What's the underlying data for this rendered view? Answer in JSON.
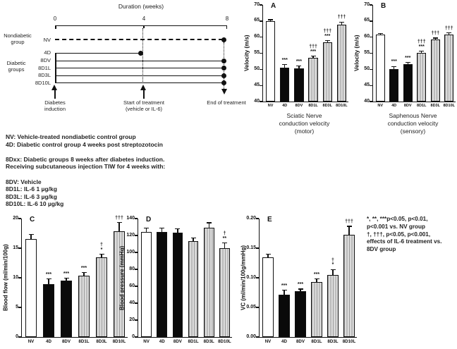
{
  "figure": {
    "timeline": {
      "title": "Duration (weeks)",
      "axis_ticks": [
        "0",
        "4",
        "8"
      ],
      "nondiabetic_label": [
        "Nondiabetic",
        "group"
      ],
      "diabetic_label": [
        "Diabetic",
        "groups"
      ],
      "rows": [
        "NV",
        "4D",
        "8DV",
        "8D1L",
        "8D3L",
        "8D10L"
      ],
      "annotations": {
        "induction": [
          "Diabetes",
          "induction"
        ],
        "start": [
          "Start of treatment",
          "(vehicle or IL-6)"
        ],
        "end": "End of treatment"
      }
    },
    "legend_lines": [
      "NV: Vehicle-treated nondiabetic control group",
      "4D: Diabetic control group 4 weeks post streptozotocin",
      "",
      "8Dxx: Diabetic groups 8 weeks after diabetes induction.",
      "Receiving subcutaneous injection TIW for 4 weeks with:",
      "",
      "8DV: Vehicle",
      "8D1L: IL-6 1 µg/kg",
      "8D3L: IL-6 3 µg/kg",
      "8D10L: IL-6 10 µg/kg"
    ],
    "stats_lines": [
      "*, **, ***p<0.05, p<0.01,",
      "p<0.001 vs. NV group",
      "†, †††, p<0.05, p<0.001,",
      "effects of IL-6 treatment vs.",
      "8DV group"
    ]
  },
  "colors": {
    "bar_white": "#ffffff",
    "bar_black": "#0a0a0a",
    "hatch_light": "#dcdcdc",
    "hatch_dark": "#9a9a9a",
    "axis": "#111111"
  },
  "chart_data": [
    {
      "type": "bar",
      "panel": "A",
      "ylabel": "Velocity (m/s)",
      "ymin": 40,
      "ymax": 70,
      "yticks": [
        "70",
        "65",
        "60",
        "55",
        "50",
        "45",
        "40"
      ],
      "categories": [
        "NV",
        "4D",
        "8DV",
        "8D1L",
        "8D3L",
        "8D10L"
      ],
      "values": [
        64.9,
        50.5,
        50.2,
        53.5,
        58.4,
        63.9
      ],
      "errors": [
        0.5,
        1.0,
        0.8,
        0.6,
        0.5,
        0.8
      ],
      "marks": [
        [],
        [
          "***"
        ],
        [
          "***"
        ],
        [
          "†††",
          "***"
        ],
        [
          "†††",
          "***"
        ],
        [
          "†††"
        ]
      ],
      "styles": [
        "white",
        "black",
        "black",
        "hatch",
        "hatch",
        "hatch"
      ],
      "caption": [
        "Sciatic Nerve",
        "conduction velocity",
        "(motor)"
      ]
    },
    {
      "type": "bar",
      "panel": "B",
      "ylabel": "Velocity (m/s)",
      "ymin": 40,
      "ymax": 70,
      "yticks": [
        "70",
        "65",
        "60",
        "55",
        "50",
        "45",
        "40"
      ],
      "categories": [
        "NV",
        "4D",
        "8DV",
        "8D1L",
        "8D3L",
        "8D10L"
      ],
      "values": [
        60.8,
        50.0,
        51.5,
        55.2,
        59.3,
        60.9
      ],
      "errors": [
        0.4,
        0.9,
        0.6,
        0.5,
        0.4,
        0.4
      ],
      "marks": [
        [],
        [
          "***"
        ],
        [
          "***"
        ],
        [
          "†††",
          "***"
        ],
        [
          "†††"
        ],
        [
          "†††"
        ]
      ],
      "styles": [
        "white",
        "black",
        "black",
        "hatch",
        "hatch",
        "hatch"
      ],
      "caption": [
        "Saphenous Nerve",
        "conduction velocity",
        "(sensory)"
      ]
    },
    {
      "type": "bar",
      "panel": "C",
      "ylabel": "Blood flow (ml/min/100g)",
      "ymin": 0,
      "ymax": 20,
      "yticks": [
        "20",
        "15",
        "10",
        "5",
        "0"
      ],
      "categories": [
        "NV",
        "4D",
        "8DV",
        "8D1L",
        "8D3L",
        "8D10L"
      ],
      "values": [
        16.6,
        8.9,
        9.5,
        10.4,
        13.4,
        17.9
      ],
      "errors": [
        0.7,
        0.9,
        0.4,
        0.5,
        0.6,
        1.4
      ],
      "marks": [
        [],
        [
          "***"
        ],
        [
          "***"
        ],
        [
          "***"
        ],
        [
          "†",
          "*"
        ],
        [
          "†††"
        ]
      ],
      "styles": [
        "white",
        "black",
        "black",
        "hatch",
        "hatch",
        "hatch"
      ]
    },
    {
      "type": "bar",
      "panel": "D",
      "ylabel": "Blood pressure (mmHg)",
      "ymin": 0,
      "ymax": 140,
      "yticks": [
        "140",
        "120",
        "100",
        "80",
        "60",
        "40",
        "20",
        "0"
      ],
      "categories": [
        "NV",
        "4D",
        "8DV",
        "8D1L",
        "8D3L",
        "8D10L"
      ],
      "values": [
        124,
        124,
        123,
        113,
        129,
        105
      ],
      "errors": [
        5,
        5,
        5,
        4,
        6,
        6
      ],
      "marks": [
        [],
        [],
        [],
        [],
        [],
        [
          "†",
          "**"
        ]
      ],
      "styles": [
        "white",
        "black",
        "black",
        "hatch",
        "hatch",
        "hatch"
      ]
    },
    {
      "type": "bar",
      "panel": "E",
      "ylabel": "VC (ml/min/100g/mmHg)",
      "ymin": 0,
      "ymax": 0.2,
      "yticks": [
        "0.20",
        "0.15",
        "0.10",
        "0.05",
        "0.00"
      ],
      "categories": [
        "NV",
        "4D",
        "8DV",
        "8D1L",
        "8D3L",
        "8D10L"
      ],
      "values": [
        0.135,
        0.072,
        0.077,
        0.093,
        0.105,
        0.173
      ],
      "errors": [
        0.005,
        0.007,
        0.004,
        0.005,
        0.009,
        0.014
      ],
      "marks": [
        [],
        [
          "***"
        ],
        [
          "***"
        ],
        [
          "***"
        ],
        [
          "†",
          "*"
        ],
        [
          "†††"
        ]
      ],
      "styles": [
        "white",
        "black",
        "black",
        "hatch",
        "hatch",
        "hatch"
      ]
    }
  ]
}
